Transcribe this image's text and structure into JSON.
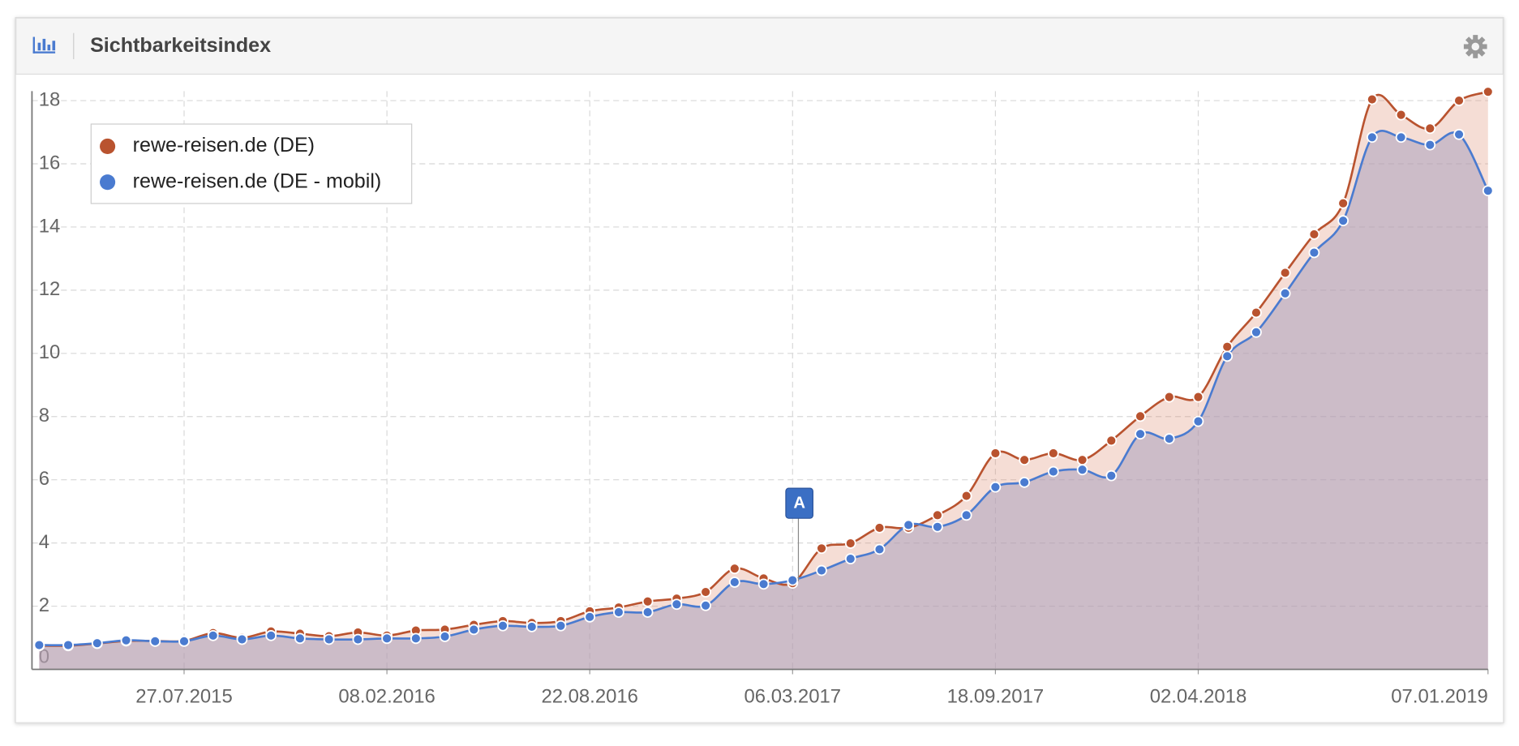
{
  "header": {
    "title": "Sichtbarkeitsindex"
  },
  "chart_data": {
    "type": "area",
    "x": [
      "09.03.2015",
      "06.04.2015",
      "04.05.2015",
      "01.06.2015",
      "29.06.2015",
      "27.07.2015",
      "24.08.2015",
      "21.09.2015",
      "19.10.2015",
      "16.11.2015",
      "14.12.2015",
      "11.01.2016",
      "08.02.2016",
      "07.03.2016",
      "04.04.2016",
      "02.05.2016",
      "30.05.2016",
      "27.06.2016",
      "25.07.2016",
      "22.08.2016",
      "19.09.2016",
      "17.10.2016",
      "14.11.2016",
      "12.12.2016",
      "09.01.2017",
      "06.02.2017",
      "06.03.2017",
      "03.04.2017",
      "01.05.2017",
      "29.05.2017",
      "26.06.2017",
      "24.07.2017",
      "21.08.2017",
      "18.09.2017",
      "16.10.2017",
      "13.11.2017",
      "11.12.2017",
      "08.01.2018",
      "05.02.2018",
      "05.03.2018",
      "02.04.2018",
      "30.04.2018",
      "28.05.2018",
      "25.06.2018",
      "23.07.2018",
      "20.08.2018",
      "17.09.2018",
      "15.10.2018",
      "12.11.2018",
      "10.12.2018",
      "07.01.2019"
    ],
    "series": [
      {
        "name": "rewe-reisen.de (DE)",
        "color": "#b9532f",
        "fill": "rgba(225,150,125,0.32)",
        "values": [
          0.75,
          0.75,
          0.82,
          0.9,
          0.9,
          0.9,
          1.15,
          1.0,
          1.2,
          1.13,
          1.05,
          1.17,
          1.07,
          1.23,
          1.26,
          1.41,
          1.53,
          1.47,
          1.53,
          1.84,
          1.96,
          2.15,
          2.24,
          2.45,
          3.19,
          2.88,
          2.73,
          3.83,
          3.99,
          4.48,
          4.48,
          4.88,
          5.49,
          6.84,
          6.63,
          6.84,
          6.63,
          7.24,
          8.01,
          8.62,
          8.62,
          10.21,
          11.29,
          12.55,
          13.77,
          14.75,
          18.04,
          17.55,
          17.12,
          18.0,
          18.28
        ]
      },
      {
        "name": "rewe-reisen.de (DE - mobil)",
        "color": "#4a7bd0",
        "fill": "rgba(170,160,190,0.55)",
        "values": [
          0.77,
          0.77,
          0.83,
          0.92,
          0.89,
          0.89,
          1.07,
          0.95,
          1.07,
          0.98,
          0.95,
          0.95,
          0.98,
          0.98,
          1.04,
          1.26,
          1.38,
          1.35,
          1.38,
          1.66,
          1.81,
          1.81,
          2.06,
          2.02,
          2.76,
          2.7,
          2.82,
          3.13,
          3.5,
          3.8,
          4.57,
          4.51,
          4.88,
          5.77,
          5.92,
          6.26,
          6.32,
          6.13,
          7.45,
          7.3,
          7.85,
          9.91,
          10.67,
          11.9,
          13.19,
          14.2,
          16.84,
          16.84,
          16.6,
          16.93,
          15.15
        ]
      }
    ],
    "xlim": [
      "02.03.2015",
      "07.01.2019"
    ],
    "xticks": [
      "27.07.2015",
      "08.02.2016",
      "22.08.2016",
      "06.03.2017",
      "18.09.2017",
      "02.04.2018",
      "07.01.2019"
    ],
    "ylim": [
      0,
      18.3
    ],
    "yticks": [
      0,
      2,
      4,
      6,
      8,
      10,
      12,
      14,
      16,
      18
    ],
    "grid": true,
    "legend": "top-left",
    "annotations": [
      {
        "x": "06.03.2017",
        "label": "A"
      }
    ]
  }
}
